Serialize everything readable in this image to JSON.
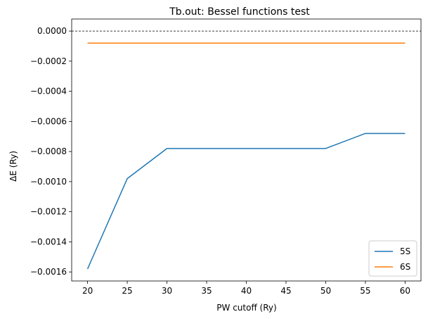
{
  "chart_data": {
    "type": "line",
    "title": "Tb.out: Bessel functions test",
    "xlabel": "PW cutoff (Ry)",
    "ylabel": "ΔE (Ry)",
    "x": [
      20,
      25,
      30,
      35,
      40,
      45,
      50,
      55,
      60
    ],
    "xticks": [
      20,
      25,
      30,
      35,
      40,
      45,
      50,
      55,
      60
    ],
    "xtick_labels": [
      "20",
      "25",
      "30",
      "35",
      "40",
      "45",
      "50",
      "55",
      "60"
    ],
    "yticks": [
      0.0,
      -0.0002,
      -0.0004,
      -0.0006,
      -0.0008,
      -0.001,
      -0.0012,
      -0.0014,
      -0.0016
    ],
    "ytick_labels": [
      "0.0000",
      "−0.0002",
      "−0.0004",
      "−0.0006",
      "−0.0008",
      "−0.0010",
      "−0.0012",
      "−0.0014",
      "−0.0016"
    ],
    "xlim": [
      18,
      62
    ],
    "ylim": [
      -0.00166,
      8e-05
    ],
    "reference_line": {
      "y": 0,
      "style": "dashed",
      "color": "#000000"
    },
    "series": [
      {
        "name": "5S",
        "color": "#1f77b4",
        "values": [
          -0.00158,
          -0.00098,
          -0.00078,
          -0.00078,
          -0.00078,
          -0.00078,
          -0.00078,
          -0.00068,
          -0.00068
        ]
      },
      {
        "name": "6S",
        "color": "#ff7f0e",
        "values": [
          -8e-05,
          -8e-05,
          -8e-05,
          -8e-05,
          -8e-05,
          -8e-05,
          -8e-05,
          -8e-05,
          -8e-05
        ]
      }
    ],
    "legend_position": "lower-right",
    "grid": false
  }
}
